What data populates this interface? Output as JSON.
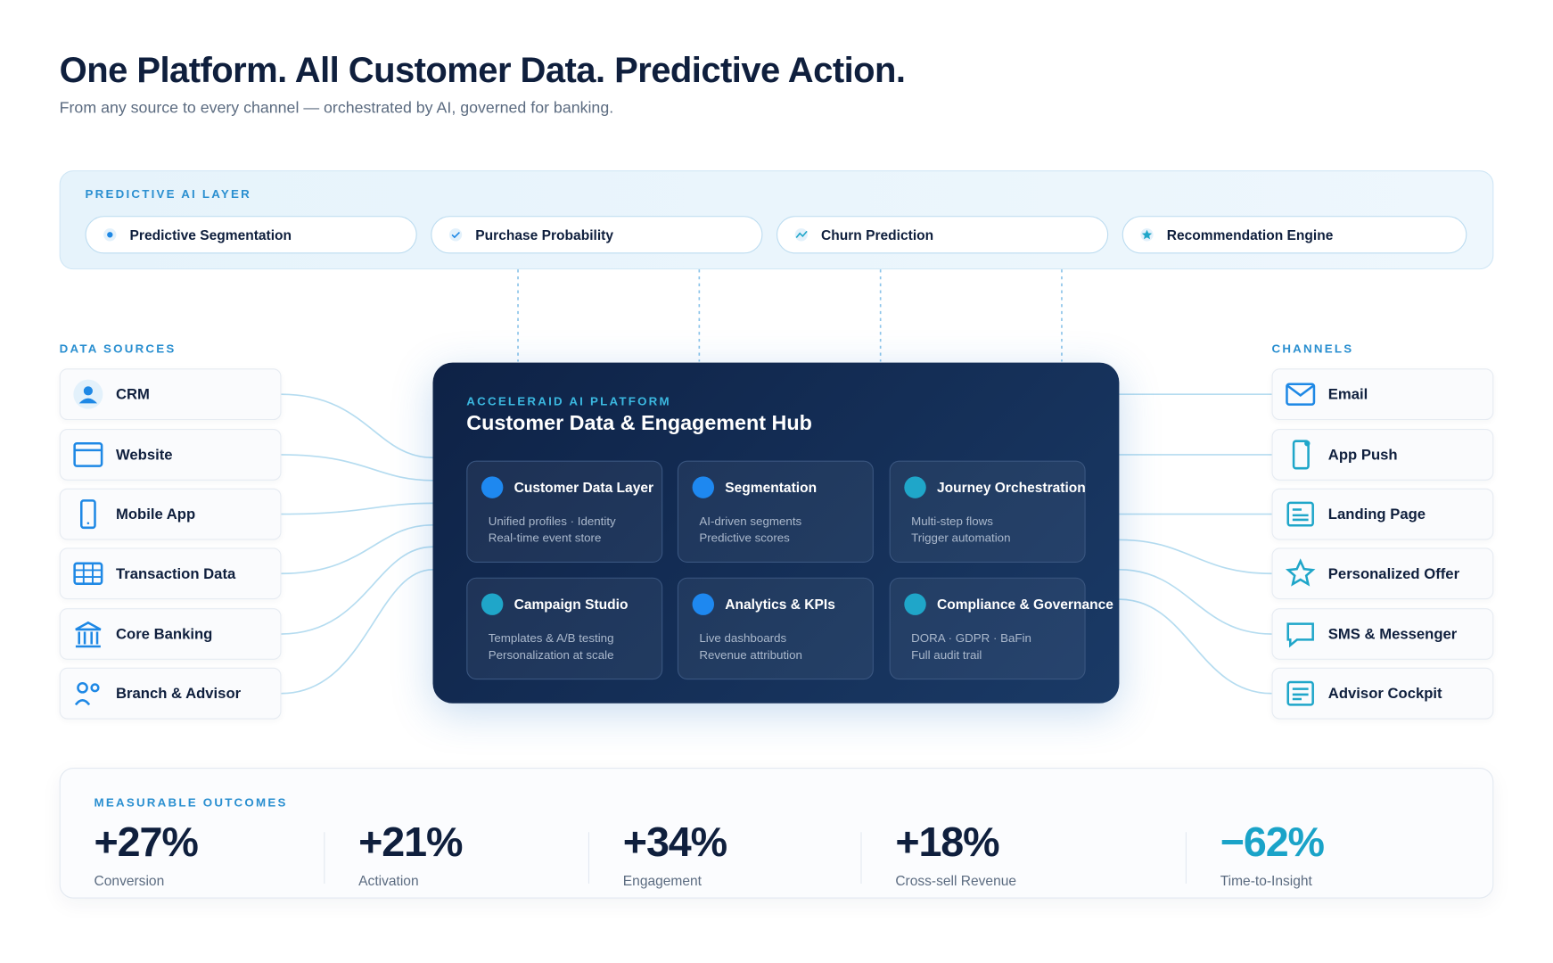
{
  "header": {
    "title": "One Platform. All Customer Data. Predictive Action.",
    "subtitle": "From any source to every channel — orchestrated by AI, governed for banking."
  },
  "ai_layer": {
    "label": "PREDICTIVE AI LAYER",
    "items": [
      "Predictive Segmentation",
      "Purchase Probability",
      "Churn Prediction",
      "Recommendation Engine"
    ]
  },
  "data_sources": {
    "label": "DATA SOURCES",
    "items": [
      "CRM",
      "Website",
      "Mobile App",
      "Transaction Data",
      "Core Banking",
      "Branch & Advisor"
    ]
  },
  "channels": {
    "label": "CHANNELS",
    "items": [
      "Email",
      "App Push",
      "Landing Page",
      "Personalized Offer",
      "SMS & Messenger",
      "Advisor Cockpit"
    ]
  },
  "hub": {
    "label": "ACCELERAID AI PLATFORM",
    "title": "Customer Data & Engagement Hub",
    "modules": [
      {
        "title": "Customer Data Layer",
        "color": "#1e88f0",
        "lines": [
          "Unified profiles · Identity",
          "Real-time event store"
        ]
      },
      {
        "title": "Segmentation",
        "color": "#1e88f0",
        "lines": [
          "AI-driven segments",
          "Predictive scores"
        ]
      },
      {
        "title": "Journey Orchestration",
        "color": "#1fa6c9",
        "lines": [
          "Multi-step flows",
          "Trigger automation"
        ]
      },
      {
        "title": "Campaign Studio",
        "color": "#1fa6c9",
        "lines": [
          "Templates & A/B testing",
          "Personalization at scale"
        ]
      },
      {
        "title": "Analytics & KPIs",
        "color": "#1e88f0",
        "lines": [
          "Live dashboards",
          "Revenue attribution"
        ]
      },
      {
        "title": "Compliance & Governance",
        "color": "#1fa6c9",
        "lines": [
          "DORA · GDPR · BaFin",
          "Full audit trail"
        ]
      }
    ]
  },
  "outcomes": {
    "label": "MEASURABLE OUTCOMES",
    "items": [
      {
        "value": "+27%",
        "label": "Conversion",
        "color": "#0f1f3d"
      },
      {
        "value": "+21%",
        "label": "Activation",
        "color": "#0f1f3d"
      },
      {
        "value": "+34%",
        "label": "Engagement",
        "color": "#0f1f3d"
      },
      {
        "value": "+18%",
        "label": "Cross-sell Revenue",
        "color": "#0f1f3d"
      },
      {
        "value": "−62%",
        "label": "Time-to-Insight",
        "color": "#1aa3c8"
      }
    ]
  }
}
